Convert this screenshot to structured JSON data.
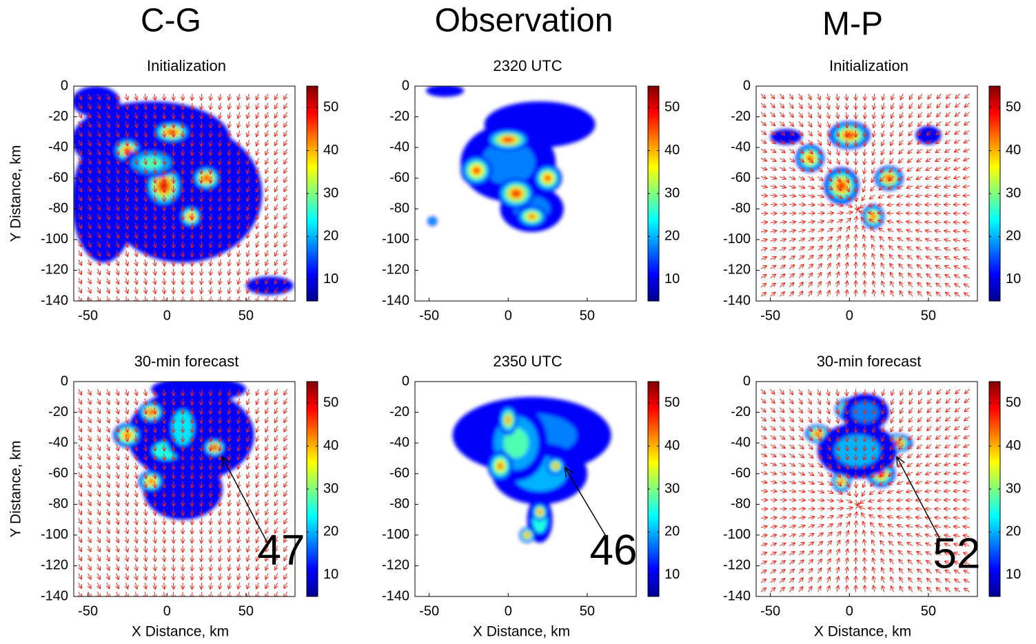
{
  "column_titles": [
    "C-G",
    "Observation",
    "M-P"
  ],
  "chart_data": [
    {
      "type": "heatmap",
      "title": "Initialization",
      "ylabel": "Y Distance, km",
      "xlim": [
        -59,
        81
      ],
      "ylim": [
        -140,
        0
      ],
      "xticks": [
        -50,
        0,
        50
      ],
      "yticks": [
        0,
        -20,
        -40,
        -60,
        -80,
        -100,
        -120,
        -140
      ],
      "clim": [
        5,
        55
      ],
      "cticks": [
        10,
        20,
        30,
        40,
        50
      ],
      "wind_vectors": true
    },
    {
      "type": "heatmap",
      "title": "2320 UTC",
      "xlim": [
        -59,
        81
      ],
      "ylim": [
        -140,
        0
      ],
      "xticks": [
        -50,
        0,
        50
      ],
      "yticks": [
        0,
        -20,
        -40,
        -60,
        -80,
        -100,
        -120,
        -140
      ],
      "clim": [
        5,
        55
      ],
      "cticks": [
        10,
        20,
        30,
        40,
        50
      ],
      "wind_vectors": false
    },
    {
      "type": "heatmap",
      "title": "Initialization",
      "xlim": [
        -59,
        81
      ],
      "ylim": [
        -140,
        0
      ],
      "xticks": [
        -50,
        0,
        50
      ],
      "yticks": [
        0,
        -20,
        -40,
        -60,
        -80,
        -100,
        -120,
        -140
      ],
      "clim": [
        5,
        55
      ],
      "cticks": [
        10,
        20,
        30,
        40,
        50
      ],
      "wind_vectors": true
    },
    {
      "type": "heatmap",
      "title": "30-min forecast",
      "xlabel": "X Distance, km",
      "ylabel": "Y Distance, km",
      "xlim": [
        -59,
        81
      ],
      "ylim": [
        -140,
        0
      ],
      "xticks": [
        -50,
        0,
        50
      ],
      "yticks": [
        0,
        -20,
        -40,
        -60,
        -80,
        -100,
        -120,
        -140
      ],
      "clim": [
        5,
        55
      ],
      "cticks": [
        10,
        20,
        30,
        40,
        50
      ],
      "wind_vectors": true,
      "annotation": 47
    },
    {
      "type": "heatmap",
      "title": "2350 UTC",
      "xlabel": "X Distance, km",
      "xlim": [
        -59,
        81
      ],
      "ylim": [
        -140,
        0
      ],
      "xticks": [
        -50,
        0,
        50
      ],
      "yticks": [
        0,
        -20,
        -40,
        -60,
        -80,
        -100,
        -120,
        -140
      ],
      "clim": [
        5,
        55
      ],
      "cticks": [
        10,
        20,
        30,
        40,
        50
      ],
      "wind_vectors": false,
      "annotation": 46
    },
    {
      "type": "heatmap",
      "title": "30-min forecast",
      "xlabel": "X Distance, km",
      "xlim": [
        -59,
        81
      ],
      "ylim": [
        -140,
        0
      ],
      "xticks": [
        -50,
        0,
        50
      ],
      "yticks": [
        0,
        -20,
        -40,
        -60,
        -80,
        -100,
        -120,
        -140
      ],
      "clim": [
        5,
        55
      ],
      "cticks": [
        10,
        20,
        30,
        40,
        50
      ],
      "wind_vectors": true,
      "annotation": 52
    }
  ]
}
